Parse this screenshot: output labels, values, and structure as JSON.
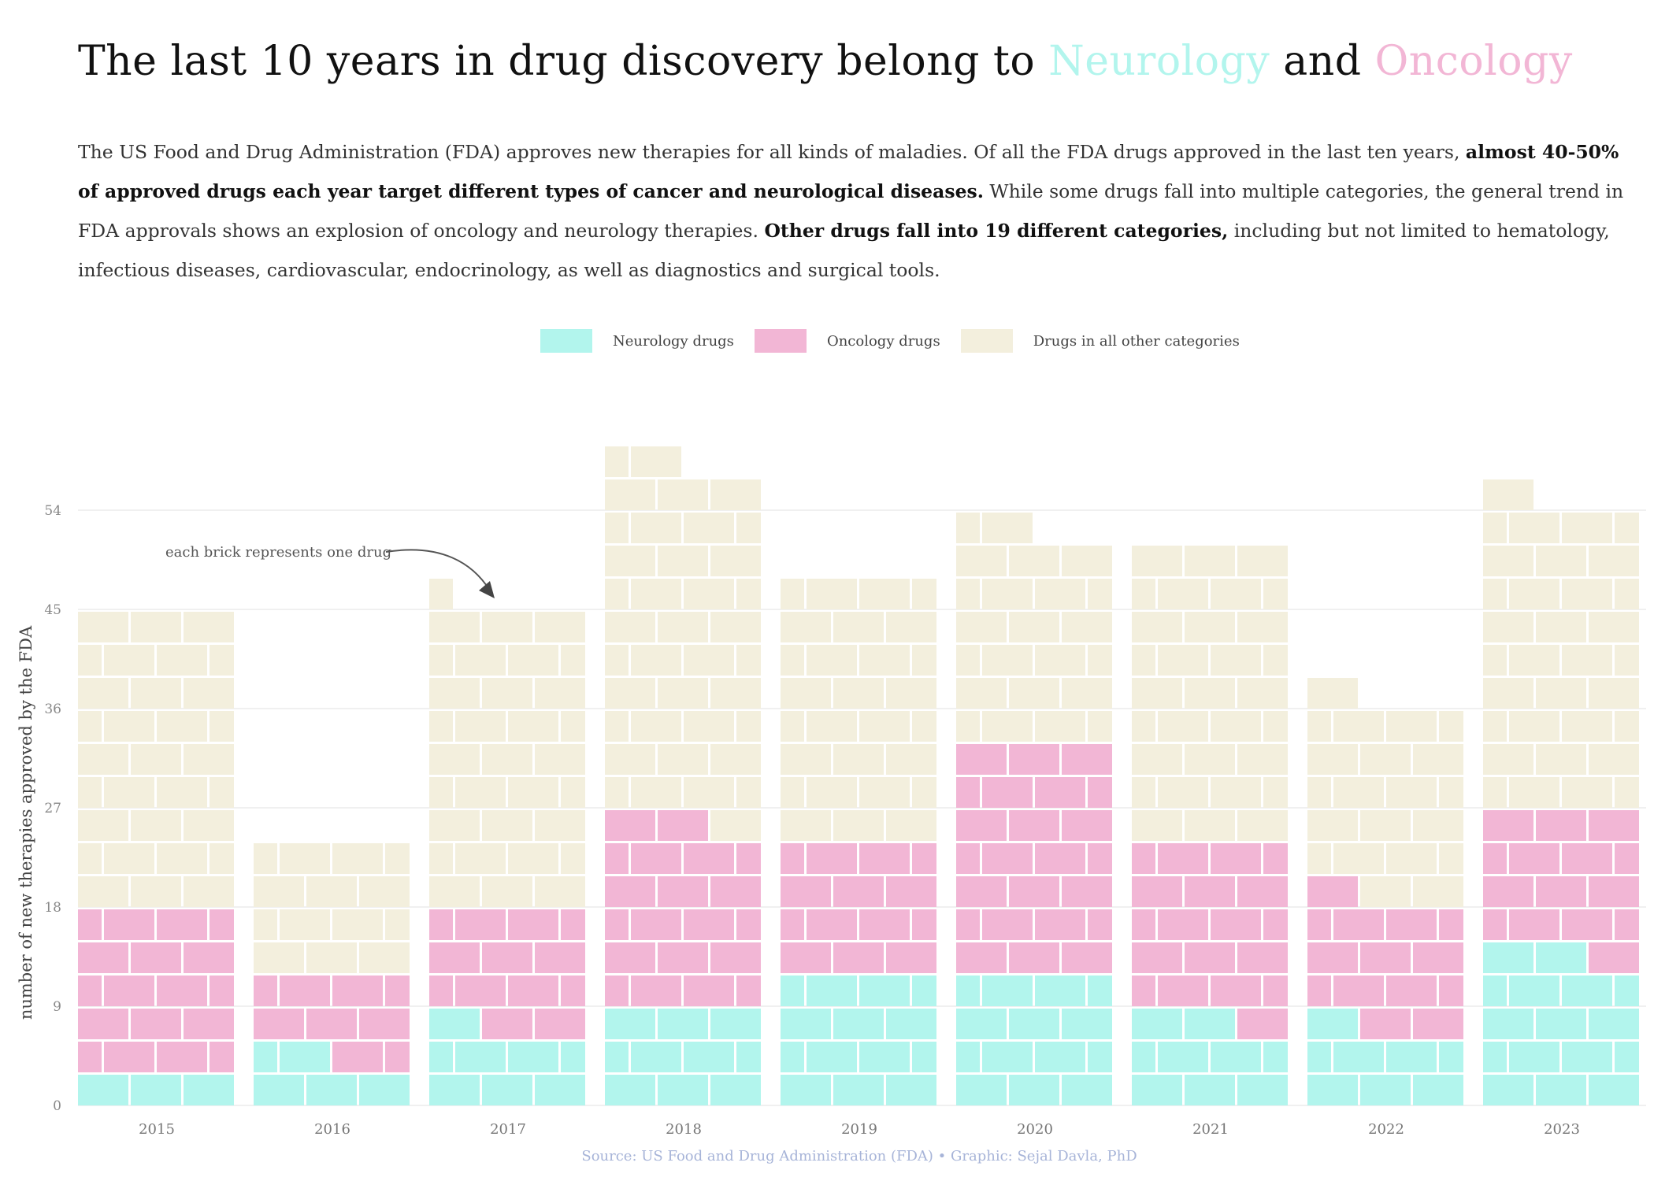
{
  "title": {
    "prefix": "The last 10 years in drug discovery belong to ",
    "neurology": "Neurology",
    "connector": " and ",
    "oncology": "Oncology"
  },
  "subtitle": {
    "p1": "The US Food and Drug Administration (FDA)  approves new therapies for all kinds of maladies. Of all the FDA drugs approved in the last ten years, ",
    "b1": "almost 40-50% of approved drugs each year target different types of cancer and neurological diseases.",
    "p2": " While some drugs fall into multiple categories, the general trend in FDA approvals shows an explosion of oncology and neurology therapies. ",
    "b2": "Other drugs fall into 19 different categories,",
    "p3": " including but not limited to hematology, infectious diseases, cardiovascular, endocrinology, as well as diagnostics and surgical tools."
  },
  "legend": [
    {
      "label": "Neurology drugs",
      "color": "#b2f5ed"
    },
    {
      "label": "Oncology drugs",
      "color": "#f2b6d5"
    },
    {
      "label": "Drugs in all other categories",
      "color": "#f3efdd"
    }
  ],
  "annotation": "each brick represents one drug",
  "source": "Source: US Food and Drug Administration (FDA) • Graphic: Sejal Davla, PhD",
  "chart_data": {
    "type": "bar",
    "subtype": "stacked brick (waffle) bars, 3 bricks per row",
    "title": "The last 10 years in drug discovery belong to Neurology and Oncology",
    "xlabel": "",
    "ylabel": "number of new therapies approved by the FDA",
    "ylim": [
      0,
      60
    ],
    "yticks": [
      0,
      9,
      18,
      27,
      36,
      45,
      54
    ],
    "grid": true,
    "legend_position": "top-center",
    "categories": [
      "2015",
      "2016",
      "2017",
      "2018",
      "2019",
      "2020",
      "2021",
      "2022",
      "2023"
    ],
    "series": [
      {
        "name": "Neurology drugs",
        "values": [
          3,
          5,
          7,
          9,
          12,
          12,
          8,
          7,
          14
        ]
      },
      {
        "name": "Oncology drugs",
        "values": [
          15,
          7,
          11,
          17,
          12,
          21,
          16,
          12,
          13
        ]
      },
      {
        "name": "Drugs in all other categories",
        "values": [
          27,
          12,
          28,
          33,
          24,
          20,
          27,
          18,
          28
        ]
      }
    ],
    "totals": [
      45,
      24,
      46,
      59,
      48,
      53,
      51,
      37,
      55
    ],
    "colors": [
      "#b2f5ed",
      "#f2b6d5",
      "#f3efdd"
    ]
  }
}
